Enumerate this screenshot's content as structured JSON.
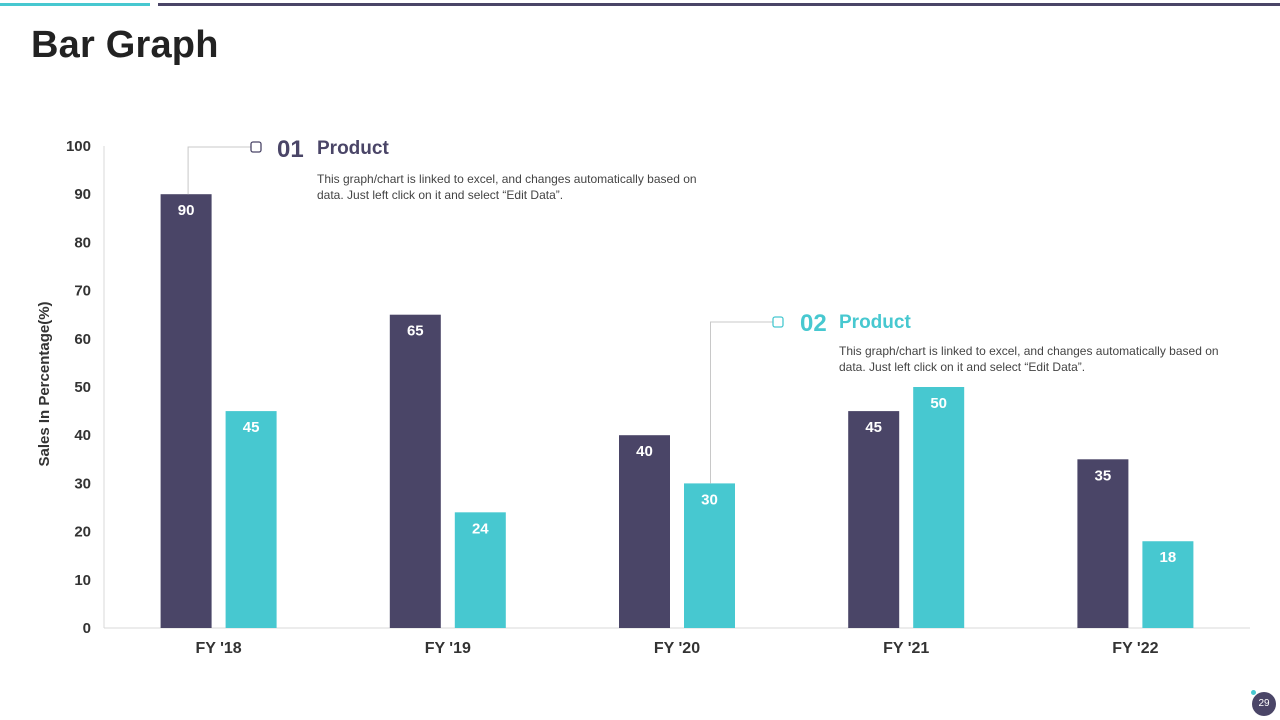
{
  "page": {
    "title": "Bar Graph",
    "page_number": "29"
  },
  "callouts": [
    {
      "number": "01",
      "name": "Product",
      "description": "This graph/chart is linked to excel, and changes automatically based on data. Just left click on it and select “Edit Data”."
    },
    {
      "number": "02",
      "name": "Product",
      "description": "This graph/chart is linked to excel, and changes automatically based on data. Just left click on it and select “Edit Data”."
    }
  ],
  "colors": {
    "series1": "#4a4567",
    "series2": "#47c8d0",
    "axis": "#d9d9d9",
    "text": "#333333"
  },
  "chart_data": {
    "type": "bar",
    "title": "",
    "xlabel": "",
    "ylabel": "Sales In Percentage(%)",
    "ylim": [
      0,
      100
    ],
    "yticks": [
      0,
      10,
      20,
      30,
      40,
      50,
      60,
      70,
      80,
      90,
      100
    ],
    "grid": false,
    "categories": [
      "FY '18",
      "FY '19",
      "FY '20",
      "FY '21",
      "FY '22"
    ],
    "series": [
      {
        "values": [
          90,
          65,
          40,
          45,
          35
        ]
      },
      {
        "values": [
          45,
          24,
          30,
          50,
          18
        ]
      }
    ]
  }
}
